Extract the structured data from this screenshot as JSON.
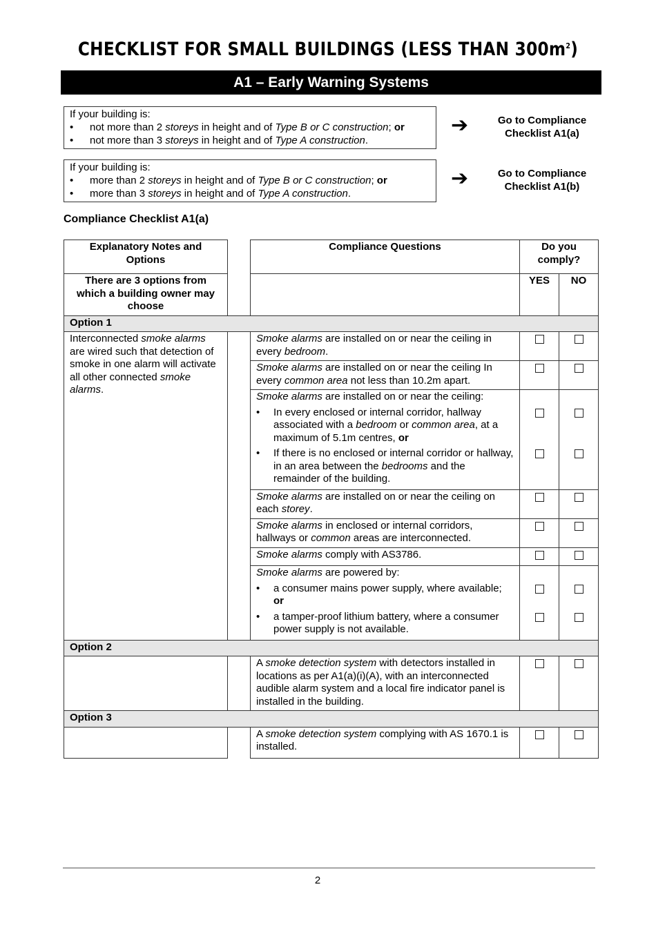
{
  "title": {
    "main": "CHECKLIST FOR SMALL BUILDINGS (LESS THAN 300m",
    "sup": "2",
    "close": ")"
  },
  "banner": "A1 – Early Warning Systems",
  "conditions": [
    {
      "intro": "If your building is:",
      "bullets": [
        [
          [
            "",
            "not more than 2 "
          ],
          [
            "i",
            "storeys"
          ],
          [
            "",
            " in height and of "
          ],
          [
            "i",
            "Type B or C construction"
          ],
          [
            "",
            "; "
          ],
          [
            "b",
            "or"
          ]
        ],
        [
          [
            "",
            "not more than 3 "
          ],
          [
            "i",
            "storeys"
          ],
          [
            "",
            " in height and of "
          ],
          [
            "i",
            "Type A construction"
          ],
          [
            "",
            "."
          ]
        ]
      ],
      "arrow_icon": "arrow-right-icon",
      "goto": "Go to Compliance Checklist A1(a)"
    },
    {
      "intro": "If your building is:",
      "bullets": [
        [
          [
            "",
            "more than 2 "
          ],
          [
            "i",
            "storeys"
          ],
          [
            "",
            " in height and of "
          ],
          [
            "i",
            "Type B or C construction"
          ],
          [
            "",
            "; "
          ],
          [
            "b",
            "or"
          ]
        ],
        [
          [
            "",
            "more than 3 "
          ],
          [
            "i",
            "storeys"
          ],
          [
            "",
            " in height and of "
          ],
          [
            "i",
            "Type A construction"
          ],
          [
            "",
            "."
          ]
        ]
      ],
      "arrow_icon": "arrow-right-icon",
      "goto": "Go to Compliance Checklist A1(b)"
    }
  ],
  "checklist_title": "Compliance Checklist A1(a)",
  "table": {
    "headers": {
      "notes": "Explanatory Notes and Options",
      "questions": "Compliance Questions",
      "comply": "Do you comply?",
      "notes_sub": "There are 3 options from which a building owner may choose",
      "yes": "YES",
      "no": "NO"
    },
    "options": [
      {
        "label": "Option 1",
        "note": [
          [
            "",
            "Interconnected "
          ],
          [
            "i",
            "smoke alarms"
          ],
          [
            "",
            " are wired such that detection of smoke in one alarm will activate all other connected "
          ],
          [
            "i",
            "smoke alarms"
          ],
          [
            "",
            "."
          ]
        ],
        "questions": [
          {
            "text": [
              [
                "i",
                "Smoke alarms"
              ],
              [
                "",
                " are installed on or near the ceiling in every "
              ],
              [
                "i",
                "bedroom"
              ],
              [
                "",
                "."
              ]
            ]
          },
          {
            "text": [
              [
                "i",
                "Smoke alarms"
              ],
              [
                "",
                " are installed on or near the ceiling In every "
              ],
              [
                "i",
                "common area"
              ],
              [
                "",
                " not less than 10.2m apart."
              ]
            ]
          },
          {
            "text": [
              [
                "i",
                "Smoke alarms"
              ],
              [
                "",
                " are installed on or near the ceiling:"
              ]
            ],
            "bullets": [
              [
                [
                  "",
                  "In every enclosed or internal corridor, hallway associated with a "
                ],
                [
                  "i",
                  "bedroom"
                ],
                [
                  "",
                  " or "
                ],
                [
                  "i",
                  "common area"
                ],
                [
                  "",
                  ", at a maximum of 5.1m centres, "
                ],
                [
                  "b",
                  "or"
                ]
              ],
              [
                [
                  "",
                  "If there is no enclosed or internal corridor or hallway, in an area between the "
                ],
                [
                  "i",
                  "bedrooms"
                ],
                [
                  "",
                  " and the remainder of the building."
                ]
              ]
            ]
          },
          {
            "text": [
              [
                "i",
                "Smoke alarms"
              ],
              [
                "",
                " are installed on or near the ceiling on each "
              ],
              [
                "i",
                "storey"
              ],
              [
                "",
                "."
              ]
            ]
          },
          {
            "text": [
              [
                "i",
                "Smoke alarms"
              ],
              [
                "",
                " in enclosed or internal corridors, hallways or "
              ],
              [
                "i",
                "common"
              ],
              [
                "",
                " areas are interconnected."
              ]
            ]
          },
          {
            "text": [
              [
                "i",
                "Smoke alarms"
              ],
              [
                "",
                " comply with AS3786."
              ]
            ]
          },
          {
            "text": [
              [
                "i",
                "Smoke alarms"
              ],
              [
                "",
                " are powered by:"
              ]
            ],
            "bullets": [
              [
                [
                  "",
                  "a consumer mains power supply, where available; "
                ],
                [
                  "b",
                  "or"
                ]
              ],
              [
                [
                  "",
                  "a tamper-proof lithium battery, where a consumer power supply is not available."
                ]
              ]
            ]
          }
        ]
      },
      {
        "label": "Option 2",
        "note": [],
        "questions": [
          {
            "text": [
              [
                "",
                "A "
              ],
              [
                "i",
                "smoke detection system"
              ],
              [
                "",
                " with detectors installed in locations as per A1(a)(i)(A), with an interconnected audible alarm system and a local fire indicator panel is installed in the building."
              ]
            ]
          }
        ]
      },
      {
        "label": "Option 3",
        "note": [],
        "questions": [
          {
            "text": [
              [
                "",
                "A "
              ],
              [
                "i",
                "smoke detection system"
              ],
              [
                "",
                " complying with AS 1670.1 is installed."
              ]
            ]
          }
        ]
      }
    ]
  },
  "footer": {
    "page_number": "2"
  }
}
